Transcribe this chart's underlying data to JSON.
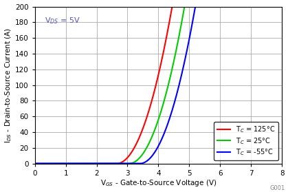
{
  "title_annotation": "V$_{DS}$ = 5V",
  "xlabel": "V$_{GS}$ - Gate-to-Source Voltage (V)",
  "ylabel": "I$_{DS}$ - Drain-to-Source Current (A)",
  "xlim": [
    0,
    8
  ],
  "ylim": [
    0,
    200
  ],
  "xticks": [
    0,
    1,
    2,
    3,
    4,
    5,
    6,
    7,
    8
  ],
  "yticks": [
    0,
    20,
    40,
    60,
    80,
    100,
    120,
    140,
    160,
    180,
    200
  ],
  "curves": [
    {
      "label": "T$_C$ = 125°C",
      "color": "#ff0000",
      "vth": 2.65,
      "k": 62.0
    },
    {
      "label": "T$_C$ = 25°C",
      "color": "#00cc00",
      "vth": 3.05,
      "k": 62.0
    },
    {
      "label": "T$_C$ = -55°C",
      "color": "#0000ff",
      "vth": 3.4,
      "k": 62.0
    }
  ],
  "legend_loc": "lower right",
  "grid_color": "#999999",
  "background_color": "#ffffff",
  "annotation_color": "#5555bb",
  "watermark": "G001"
}
